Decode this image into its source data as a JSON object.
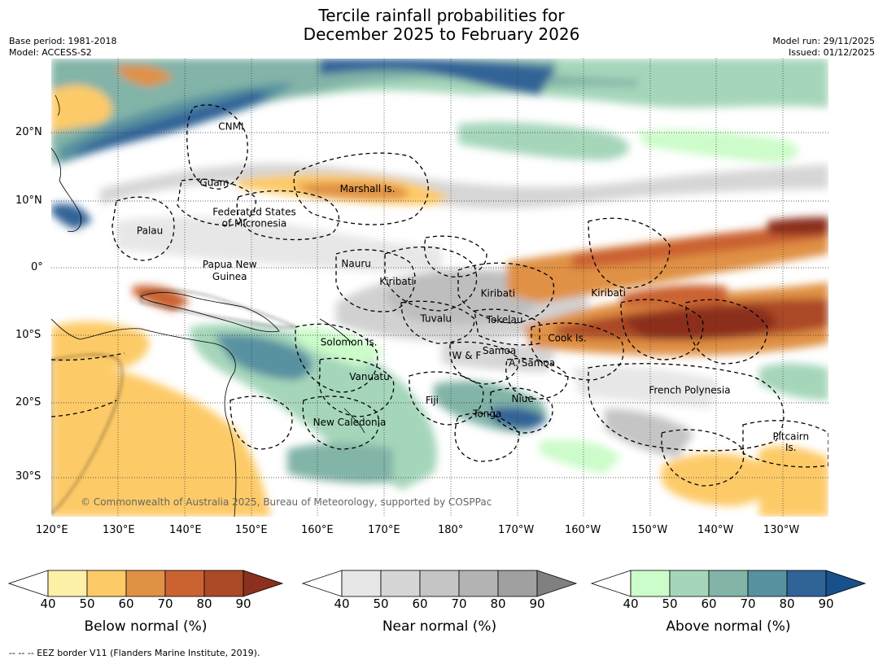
{
  "title_line1": "Tercile rainfall probabilities for",
  "title_line2": "December 2025 to February 2026",
  "meta_left": [
    "Base period: 1981-2018",
    "Model: ACCESS-S2"
  ],
  "meta_right": [
    "Model run: 29/11/2025",
    "Issued: 01/12/2025"
  ],
  "longitude_labels": [
    "120°E",
    "130°E",
    "140°E",
    "150°E",
    "160°E",
    "170°E",
    "180°",
    "170°W",
    "160°W",
    "150°W",
    "140°W",
    "130°W"
  ],
  "latitude_labels": [
    "20°N",
    "10°N",
    "0°",
    "10°S",
    "20°S",
    "30°S"
  ],
  "region_labels": [
    {
      "name": "CNMI",
      "lon": 147,
      "lat": 20.4
    },
    {
      "name": "Guam",
      "lon": 144.5,
      "lat": 12.1
    },
    {
      "name": "Marshall Is.",
      "lon": 167.5,
      "lat": 11.2
    },
    {
      "name": "Federated States",
      "lon": 150.5,
      "lat": 7.8
    },
    {
      "name": "of Micronesia",
      "lon": 150.5,
      "lat": 6.1
    },
    {
      "name": "Palau",
      "lon": 134.8,
      "lat": 5.0
    },
    {
      "name": "Papua New",
      "lon": 146.8,
      "lat": 0.0
    },
    {
      "name": "Guinea",
      "lon": 146.8,
      "lat": -1.8
    },
    {
      "name": "Nauru",
      "lon": 165.8,
      "lat": 0.1
    },
    {
      "name": "Kiribati",
      "lon": 171.9,
      "lat": -2.5
    },
    {
      "name": "Kiribati",
      "lon": -172.9,
      "lat": -4.3
    },
    {
      "name": "Kiribati",
      "lon": -156.3,
      "lat": -4.2
    },
    {
      "name": "Tuvalu",
      "lon": 177.8,
      "lat": -8.0
    },
    {
      "name": "Tokelau",
      "lon": -171.9,
      "lat": -8.2
    },
    {
      "name": "Solomon Is.",
      "lon": 164.7,
      "lat": -11.5
    },
    {
      "name": "Cook Is.",
      "lon": -162.5,
      "lat": -10.9
    },
    {
      "name": "Samoa",
      "lon": -172.7,
      "lat": -12.8
    },
    {
      "name": "W & F",
      "lon": -177.6,
      "lat": -13.5
    },
    {
      "name": "A. Samoa",
      "lon": -167.8,
      "lat": -14.6
    },
    {
      "name": "Vanuatu",
      "lon": 167.8,
      "lat": -16.6
    },
    {
      "name": "French Polynesia",
      "lon": -144.1,
      "lat": -18.6
    },
    {
      "name": "Fiji",
      "lon": 177.2,
      "lat": -20.1
    },
    {
      "name": "Niue",
      "lon": -169.2,
      "lat": -19.9
    },
    {
      "name": "Tonga",
      "lon": -174.5,
      "lat": -22.1
    },
    {
      "name": "New Caledonia",
      "lon": 164.8,
      "lat": -23.4
    },
    {
      "name": "Pitcairn",
      "lon": -128.9,
      "lat": -25.5
    },
    {
      "name": "Is.",
      "lon": -128.9,
      "lat": -27.1
    }
  ],
  "copyright": "© Commonwealth of Australia 2025, Bureau of Meteorology, supported by COSPPac",
  "colorbars": [
    {
      "label": "Below normal (%)",
      "ticks": [
        "40",
        "50",
        "60",
        "70",
        "80",
        "90"
      ],
      "colors": [
        "#ffffff",
        "#fff0a8",
        "#fdca68",
        "#e09144",
        "#cb6232",
        "#ac4926",
        "#8b2f1e"
      ]
    },
    {
      "label": "Near normal (%)",
      "ticks": [
        "40",
        "50",
        "60",
        "70",
        "80",
        "90"
      ],
      "colors": [
        "#ffffff",
        "#e7e7e7",
        "#d6d6d6",
        "#c5c5c5",
        "#b3b3b3",
        "#a0a0a0",
        "#808080"
      ]
    },
    {
      "label": "Above normal (%)",
      "ticks": [
        "40",
        "50",
        "60",
        "70",
        "80",
        "90"
      ],
      "colors": [
        "#ffffff",
        "#ccfcc9",
        "#a5d6ba",
        "#82b4a8",
        "#5891a0",
        "#306397",
        "#17508a"
      ]
    }
  ],
  "footer": "-- -- -- EEZ border V11 (Flanders Marine Institute, 2019)."
}
